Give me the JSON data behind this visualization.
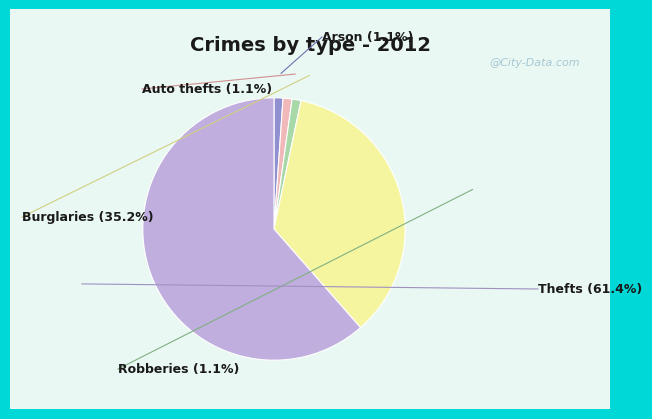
{
  "title": "Crimes by type - 2012",
  "slices": [
    {
      "label": "Thefts (61.4%)",
      "value": 61.4,
      "color": "#c0aede"
    },
    {
      "label": "Burglaries (35.2%)",
      "value": 35.2,
      "color": "#f5f5a0"
    },
    {
      "label": "Robberies (1.1%)",
      "value": 1.1,
      "color": "#a8d8a8"
    },
    {
      "label": "Auto thefts (1.1%)",
      "value": 1.1,
      "color": "#f0b8b8"
    },
    {
      "label": "Arson (1.1%)",
      "value": 1.1,
      "color": "#9090d0"
    }
  ],
  "fig_bg": "#00d8d8",
  "chart_bg_outer": "#d8f5ee",
  "title_fontsize": 14,
  "title_color": "#1a1a1a",
  "label_fontsize": 9,
  "watermark": "@City-Data.com"
}
